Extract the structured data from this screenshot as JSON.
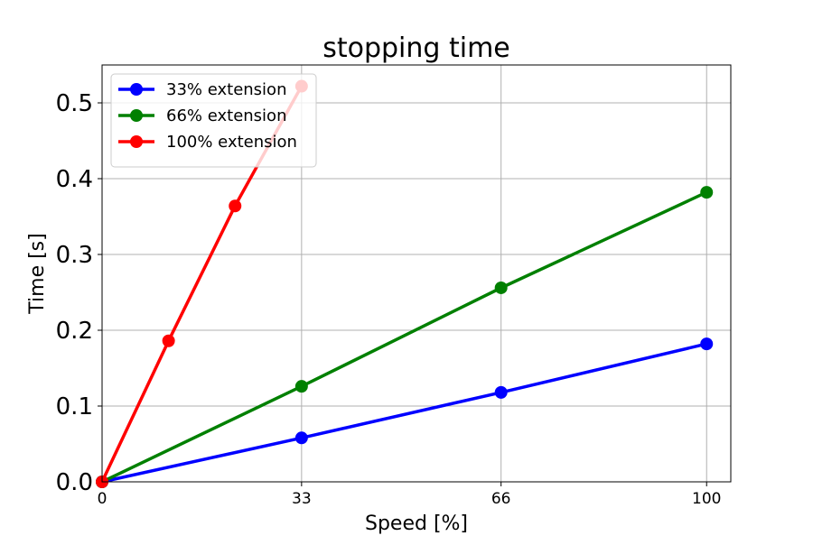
{
  "chart_data": {
    "type": "line",
    "title": "stopping time",
    "xlabel": "Speed [%]",
    "ylabel": "Time [s]",
    "xlim": [
      0,
      104
    ],
    "ylim": [
      0,
      0.55
    ],
    "xticks": [
      0,
      33,
      66,
      100
    ],
    "xtick_labels": [
      "0",
      "33",
      "66",
      "100"
    ],
    "yticks": [
      0.0,
      0.1,
      0.2,
      0.3,
      0.4,
      0.5
    ],
    "ytick_labels": [
      "0.0",
      "0.1",
      "0.2",
      "0.3",
      "0.4",
      "0.5"
    ],
    "grid": true,
    "legend_position": "top-left",
    "series": [
      {
        "name": "33% extension",
        "color": "#0000ff",
        "x": [
          0,
          33,
          66,
          100
        ],
        "y": [
          0.0,
          0.058,
          0.118,
          0.182
        ]
      },
      {
        "name": "66% extension",
        "color": "#008000",
        "x": [
          0,
          33,
          66,
          100
        ],
        "y": [
          0.0,
          0.126,
          0.256,
          0.382
        ]
      },
      {
        "name": "100% extension",
        "color": "#ff0000",
        "x": [
          0,
          11,
          22,
          33
        ],
        "y": [
          0.0,
          0.186,
          0.364,
          0.522
        ]
      }
    ]
  }
}
